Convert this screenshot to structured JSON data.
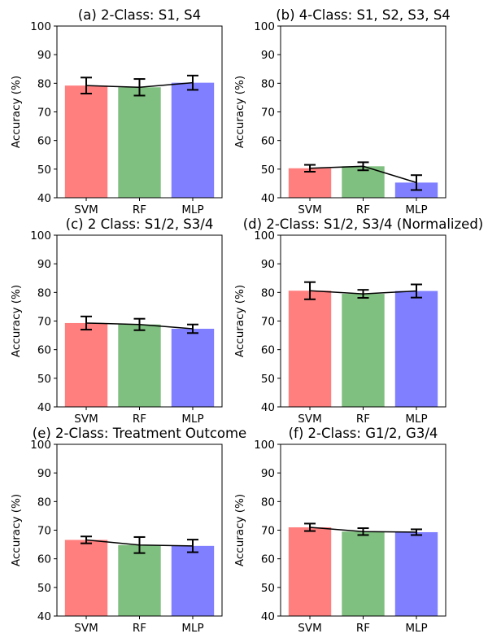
{
  "chart_data": [
    {
      "type": "bar",
      "title": "(a) 2-Class: S1, S4",
      "ylabel": "Accuracy (%)",
      "categories": [
        "SVM",
        "RF",
        "MLP"
      ],
      "values": [
        79.2,
        78.6,
        80.2
      ],
      "errors": [
        2.8,
        2.9,
        2.5
      ],
      "ylim": [
        40,
        100
      ],
      "yticks": [
        40,
        50,
        60,
        70,
        80,
        90,
        100
      ],
      "colors": [
        "#ff7f7f",
        "#7fbf7f",
        "#7f7fff"
      ]
    },
    {
      "type": "bar",
      "title": "(b) 4-Class: S1, S2, S3, S4",
      "ylabel": "Accuracy (%)",
      "categories": [
        "SVM",
        "RF",
        "MLP"
      ],
      "values": [
        50.3,
        51.0,
        45.3
      ],
      "errors": [
        1.2,
        1.4,
        2.6
      ],
      "ylim": [
        40,
        100
      ],
      "yticks": [
        40,
        50,
        60,
        70,
        80,
        90,
        100
      ],
      "colors": [
        "#ff7f7f",
        "#7fbf7f",
        "#7f7fff"
      ]
    },
    {
      "type": "bar",
      "title": "(c) 2 Class: S1/2, S3/4",
      "ylabel": "Accuracy (%)",
      "categories": [
        "SVM",
        "RF",
        "MLP"
      ],
      "values": [
        69.3,
        68.8,
        67.3
      ],
      "errors": [
        2.3,
        2.0,
        1.5
      ],
      "ylim": [
        40,
        100
      ],
      "yticks": [
        40,
        50,
        60,
        70,
        80,
        90,
        100
      ],
      "colors": [
        "#ff7f7f",
        "#7fbf7f",
        "#7f7fff"
      ]
    },
    {
      "type": "bar",
      "title": "(d) 2-Class: S1/2, S3/4 (Normalized)",
      "ylabel": "Accuracy (%)",
      "categories": [
        "SVM",
        "RF",
        "MLP"
      ],
      "values": [
        80.6,
        79.5,
        80.5
      ],
      "errors": [
        3.0,
        1.4,
        2.3
      ],
      "ylim": [
        40,
        100
      ],
      "yticks": [
        40,
        50,
        60,
        70,
        80,
        90,
        100
      ],
      "colors": [
        "#ff7f7f",
        "#7fbf7f",
        "#7f7fff"
      ]
    },
    {
      "type": "bar",
      "title": "(e) 2-Class: Treatment Outcome",
      "ylabel": "Accuracy (%)",
      "categories": [
        "SVM",
        "RF",
        "MLP"
      ],
      "values": [
        66.6,
        64.8,
        64.5
      ],
      "errors": [
        1.2,
        2.8,
        2.2
      ],
      "ylim": [
        40,
        100
      ],
      "yticks": [
        40,
        50,
        60,
        70,
        80,
        90,
        100
      ],
      "colors": [
        "#ff7f7f",
        "#7fbf7f",
        "#7f7fff"
      ]
    },
    {
      "type": "bar",
      "title": "(f) 2-Class: G1/2, G3/4",
      "ylabel": "Accuracy (%)",
      "categories": [
        "SVM",
        "RF",
        "MLP"
      ],
      "values": [
        71.0,
        69.5,
        69.3
      ],
      "errors": [
        1.3,
        1.2,
        1.0
      ],
      "ylim": [
        40,
        100
      ],
      "yticks": [
        40,
        50,
        60,
        70,
        80,
        90,
        100
      ],
      "colors": [
        "#ff7f7f",
        "#7fbf7f",
        "#7f7fff"
      ]
    }
  ]
}
